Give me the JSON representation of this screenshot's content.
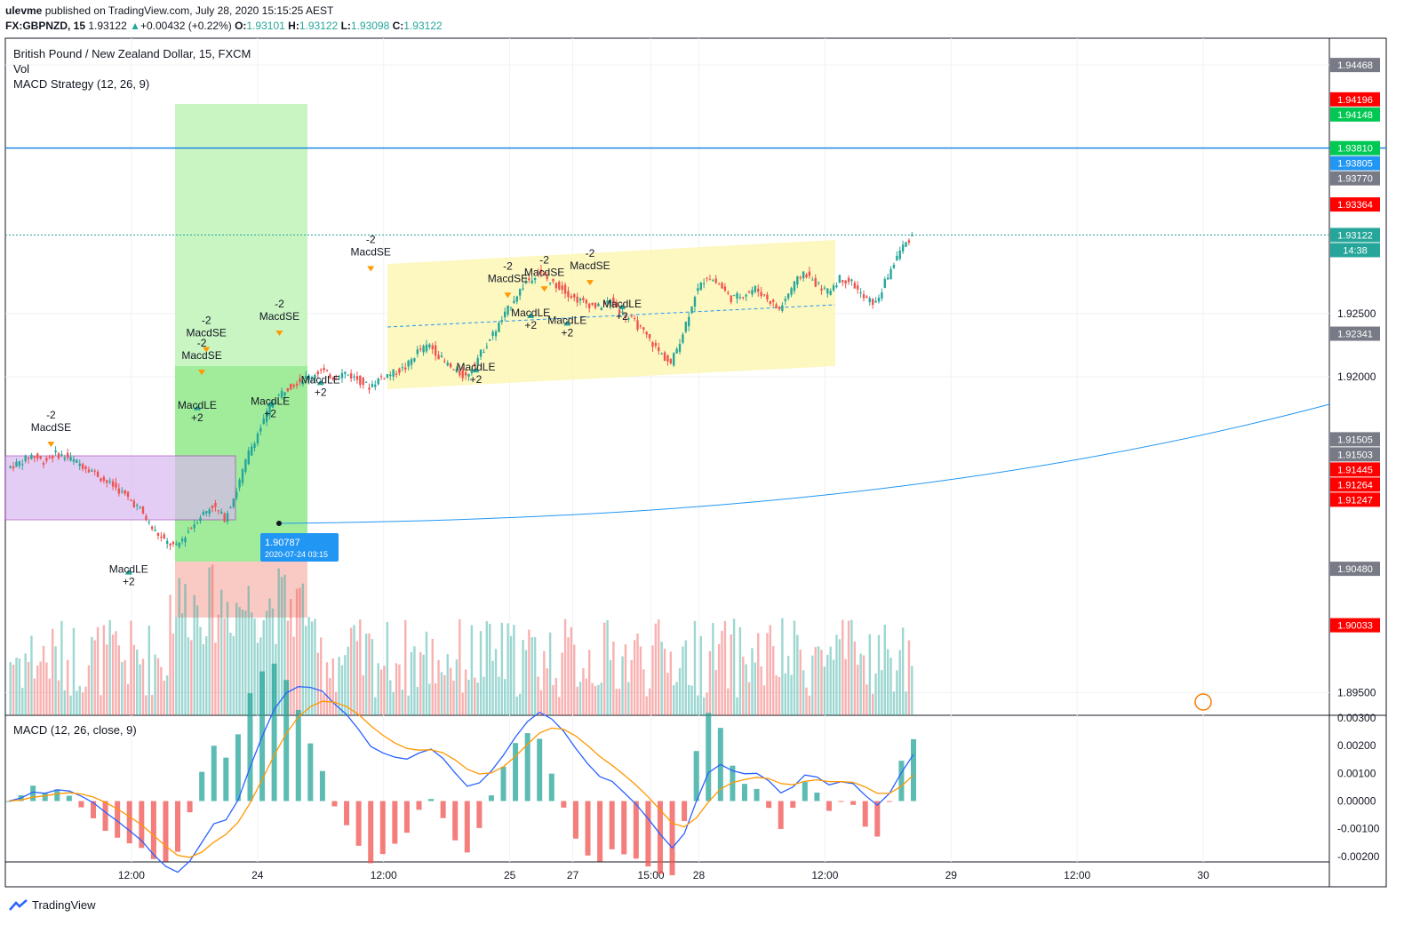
{
  "header": {
    "publisher": "ulevme",
    "published_text": "published on TradingView.com, July 28, 2020 15:15:25 AEST",
    "symbol": "FX:GBPNZD, 15",
    "last": "1.93122",
    "change": "+0.00432 (+0.22%)",
    "o_label": "O:",
    "o": "1.93101",
    "h_label": "H:",
    "h": "1.93122",
    "l_label": "L:",
    "l": "1.93098",
    "c_label": "C:",
    "c": "1.93122"
  },
  "legend": {
    "title": "British Pound / New Zealand Dollar, 15, FXCM",
    "vol": "Vol",
    "strategy": "MACD Strategy (12, 26, 9)",
    "macd": "MACD (12, 26, close, 9)"
  },
  "footer": {
    "brand": "TradingView"
  },
  "colors": {
    "up": "#26a69a",
    "down": "#ef5350",
    "blue": "#2962ff",
    "orange": "#ff9800",
    "price_box_red": "#ff0000",
    "price_box_green": "#00c853",
    "price_box_blue": "#2196f3",
    "price_box_gray": "#787b86"
  },
  "chart_data": {
    "type": "candlestick",
    "price_axis": {
      "ticks": [
        "1.94468",
        "1.92500",
        "1.92000",
        "1.89500"
      ],
      "range": [
        1.8932,
        1.9468
      ]
    },
    "price_labels": [
      {
        "value": "1.94468",
        "kind": "gray"
      },
      {
        "value": "1.94196",
        "kind": "red"
      },
      {
        "value": "1.94148",
        "kind": "green"
      },
      {
        "value": "1.93810",
        "kind": "green"
      },
      {
        "value": "1.93805",
        "kind": "blue"
      },
      {
        "value": "1.93770",
        "kind": "gray"
      },
      {
        "value": "1.93364",
        "kind": "red"
      },
      {
        "value": "1.93122",
        "kind": "teal"
      },
      {
        "value": "14:38",
        "kind": "teal"
      },
      {
        "value": "1.92341",
        "kind": "gray"
      },
      {
        "value": "1.91505",
        "kind": "gray"
      },
      {
        "value": "1.91503",
        "kind": "gray"
      },
      {
        "value": "1.91445",
        "kind": "red"
      },
      {
        "value": "1.91264",
        "kind": "red"
      },
      {
        "value": "1.91247",
        "kind": "red"
      },
      {
        "value": "1.90480",
        "kind": "gray"
      },
      {
        "value": "1.90033",
        "kind": "red"
      }
    ],
    "macd_axis": {
      "ticks": [
        "0.00300",
        "0.00200",
        "0.00100",
        "0.00000",
        "-0.00100",
        "-0.00200"
      ],
      "range": [
        -0.0022,
        0.0031
      ]
    },
    "time_axis": [
      "12:00",
      "24",
      "12:00",
      "25",
      "27",
      "15:00",
      "28",
      "12:00",
      "29",
      "12:00",
      "30"
    ],
    "time_axis_index": [
      0.5,
      1,
      1.5,
      2,
      2.25,
      2.56,
      2.75,
      3.25,
      3.75,
      4.25,
      4.75
    ],
    "horizontal_line": 1.9381,
    "last_price_line": 1.93122,
    "anchor_point": {
      "price": "1.90787",
      "date": "2020-07-24 03:15"
    },
    "price_path": [
      1.9128,
      1.9132,
      1.9138,
      1.9133,
      1.9139,
      1.9136,
      1.9131,
      1.9126,
      1.9118,
      1.9112,
      1.9104,
      1.9095,
      1.908,
      1.907,
      1.9065,
      1.9078,
      1.909,
      1.9098,
      1.9088,
      1.911,
      1.914,
      1.916,
      1.918,
      1.919,
      1.9196,
      1.92,
      1.9205,
      1.92,
      1.9203,
      1.9198,
      1.9192,
      1.92,
      1.9203,
      1.9207,
      1.922,
      1.9225,
      1.9214,
      1.9205,
      1.92,
      1.9215,
      1.923,
      1.9245,
      1.9262,
      1.9275,
      1.9283,
      1.9275,
      1.927,
      1.9262,
      1.9258,
      1.9255,
      1.926,
      1.925,
      1.9243,
      1.9232,
      1.922,
      1.921,
      1.9235,
      1.9265,
      1.928,
      1.9273,
      1.9262,
      1.9265,
      1.927,
      1.9262,
      1.9253,
      1.927,
      1.9283,
      1.9274,
      1.9267,
      1.9278,
      1.9275,
      1.9262,
      1.9258,
      1.928,
      1.93,
      1.9312
    ],
    "markers": [
      {
        "label": "-2",
        "text": "MacdSE",
        "i": 0.05,
        "price": 1.9157
      },
      {
        "label": "MacdLE",
        "text": "+2",
        "i": 0.135,
        "price": 1.9035
      },
      {
        "label": "-2",
        "text": "MacdSE",
        "i": 0.215,
        "price": 1.9214
      },
      {
        "label": "-2",
        "text": "MacdSE",
        "i": 0.22,
        "price": 1.9232
      },
      {
        "label": "MacdLE",
        "text": "+2",
        "i": 0.21,
        "price": 1.9165
      },
      {
        "label": "MacdLE",
        "text": "+2",
        "i": 0.29,
        "price": 1.9168
      },
      {
        "label": "-2",
        "text": "MacdSE",
        "i": 0.3,
        "price": 1.9245
      },
      {
        "label": "MacdLE",
        "text": "+2",
        "i": 0.345,
        "price": 1.9185
      },
      {
        "label": "-2",
        "text": "MacdSE",
        "i": 0.4,
        "price": 1.9296
      },
      {
        "label": "MacdLE",
        "text": "+2",
        "i": 0.515,
        "price": 1.9195
      },
      {
        "label": "-2",
        "text": "MacdSE",
        "i": 0.55,
        "price": 1.9275
      },
      {
        "label": "MacdLE",
        "text": "+2",
        "i": 0.575,
        "price": 1.9238
      },
      {
        "label": "-2",
        "text": "MacdSE",
        "i": 0.59,
        "price": 1.928
      },
      {
        "label": "MacdLE",
        "text": "+2",
        "i": 0.615,
        "price": 1.9232
      },
      {
        "label": "-2",
        "text": "MacdSE",
        "i": 0.64,
        "price": 1.9285
      },
      {
        "label": "MacdLE",
        "text": "+2",
        "i": 0.675,
        "price": 1.9245
      }
    ]
  }
}
